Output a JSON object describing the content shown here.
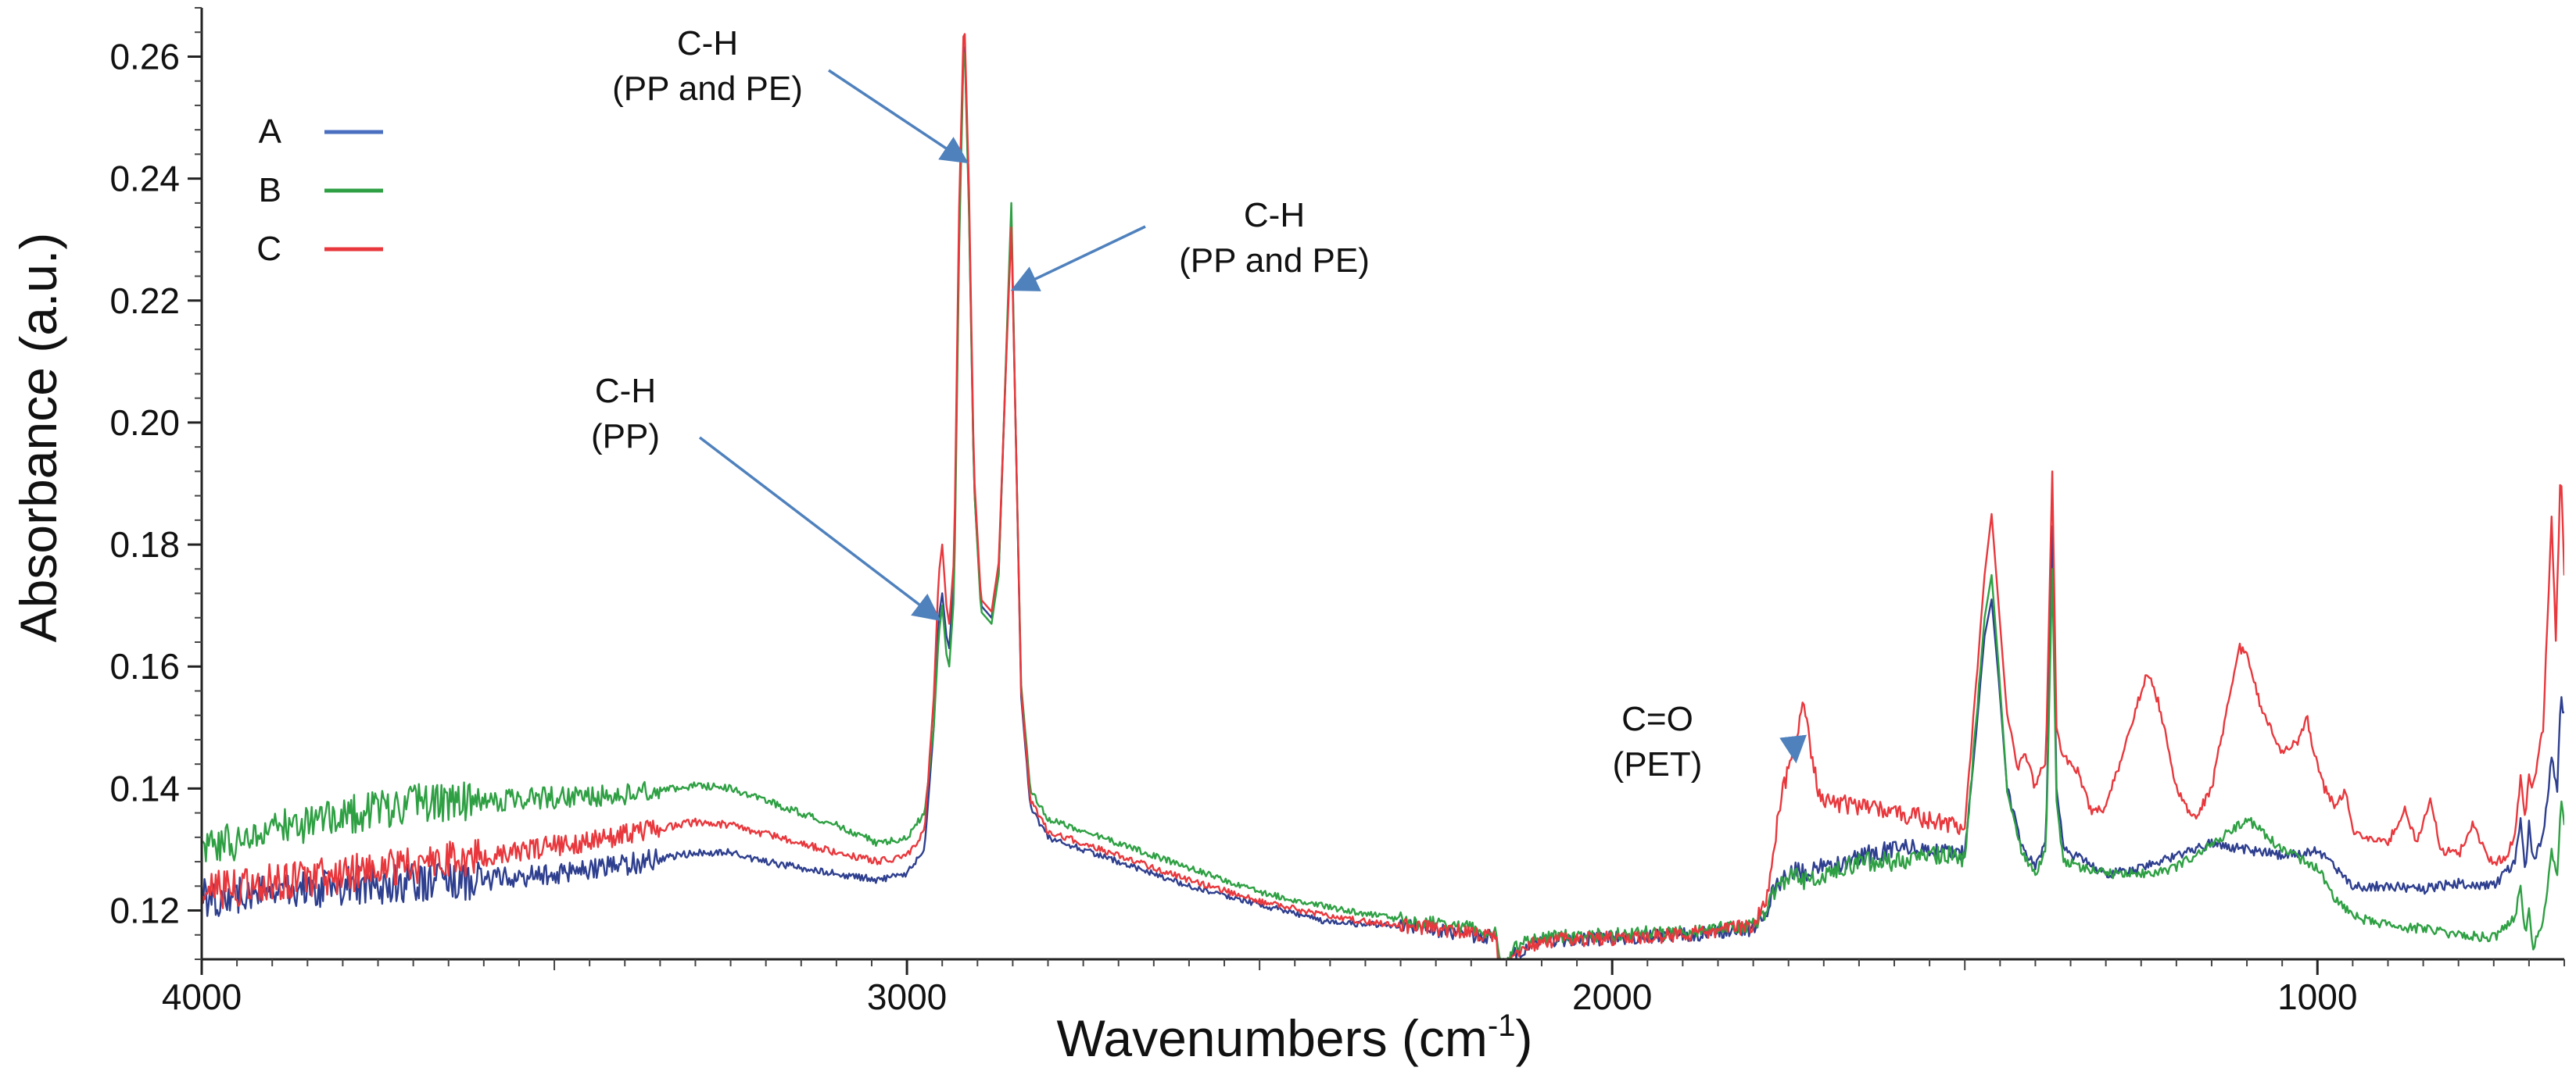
{
  "chart_data": {
    "type": "line",
    "title": "",
    "xlabel": "Wavenumbers (cm",
    "xlabel_superscript": "-1",
    "xlabel_suffix": ")",
    "ylabel": "Absorbance  (a.u.)",
    "xlim": [
      4000,
      650
    ],
    "ylim": [
      0.112,
      0.268
    ],
    "x_reversed": true,
    "grid": false,
    "legend_position": "top-left",
    "x_ticks": [
      "4000",
      "3000",
      "2000",
      "1000"
    ],
    "x_tick_values": [
      4000,
      3000,
      2000,
      1000
    ],
    "y_ticks": [
      "0.12",
      "0.14",
      "0.16",
      "0.18",
      "0.20",
      "0.22",
      "0.24",
      "0.26"
    ],
    "y_tick_values": [
      0.12,
      0.14,
      0.16,
      0.18,
      0.2,
      0.22,
      0.24,
      0.26
    ],
    "series": [
      {
        "name": "A",
        "color": "#2e3f8f",
        "legend_color": "#4a6fc0",
        "points": [
          [
            4000,
            0.122
          ],
          [
            3900,
            0.123
          ],
          [
            3800,
            0.124
          ],
          [
            3700,
            0.1245
          ],
          [
            3600,
            0.125
          ],
          [
            3500,
            0.126
          ],
          [
            3400,
            0.1275
          ],
          [
            3300,
            0.1295
          ],
          [
            3250,
            0.1295
          ],
          [
            3200,
            0.128
          ],
          [
            3100,
            0.126
          ],
          [
            3040,
            0.125
          ],
          [
            3000,
            0.126
          ],
          [
            2975,
            0.13
          ],
          [
            2962,
            0.15
          ],
          [
            2955,
            0.168
          ],
          [
            2950,
            0.172
          ],
          [
            2944,
            0.165
          ],
          [
            2940,
            0.163
          ],
          [
            2933,
            0.175
          ],
          [
            2926,
            0.23
          ],
          [
            2919,
            0.266
          ],
          [
            2912,
            0.235
          ],
          [
            2905,
            0.19
          ],
          [
            2895,
            0.17
          ],
          [
            2880,
            0.168
          ],
          [
            2870,
            0.175
          ],
          [
            2858,
            0.215
          ],
          [
            2852,
            0.234
          ],
          [
            2846,
            0.2
          ],
          [
            2838,
            0.155
          ],
          [
            2825,
            0.137
          ],
          [
            2800,
            0.132
          ],
          [
            2700,
            0.128
          ],
          [
            2600,
            0.124
          ],
          [
            2500,
            0.121
          ],
          [
            2400,
            0.118
          ],
          [
            2300,
            0.1175
          ],
          [
            2200,
            0.116
          ],
          [
            2165,
            0.1155
          ],
          [
            2160,
            0.111
          ],
          [
            2150,
            0.1095
          ],
          [
            2140,
            0.113
          ],
          [
            2100,
            0.115
          ],
          [
            2000,
            0.1155
          ],
          [
            1900,
            0.116
          ],
          [
            1800,
            0.117
          ],
          [
            1780,
            0.12
          ],
          [
            1770,
            0.124
          ],
          [
            1740,
            0.127
          ],
          [
            1730,
            0.126
          ],
          [
            1700,
            0.127
          ],
          [
            1650,
            0.129
          ],
          [
            1600,
            0.13
          ],
          [
            1550,
            0.13
          ],
          [
            1520,
            0.13
          ],
          [
            1500,
            0.129
          ],
          [
            1472,
            0.165
          ],
          [
            1462,
            0.171
          ],
          [
            1452,
            0.158
          ],
          [
            1440,
            0.14
          ],
          [
            1420,
            0.131
          ],
          [
            1400,
            0.127
          ],
          [
            1385,
            0.131
          ],
          [
            1376,
            0.183
          ],
          [
            1370,
            0.14
          ],
          [
            1360,
            0.13
          ],
          [
            1300,
            0.126
          ],
          [
            1250,
            0.127
          ],
          [
            1200,
            0.129
          ],
          [
            1150,
            0.131
          ],
          [
            1100,
            0.13
          ],
          [
            1050,
            0.129
          ],
          [
            1000,
            0.13
          ],
          [
            975,
            0.127
          ],
          [
            950,
            0.124
          ],
          [
            900,
            0.124
          ],
          [
            850,
            0.1235
          ],
          [
            800,
            0.1245
          ],
          [
            750,
            0.124
          ],
          [
            720,
            0.128
          ],
          [
            712,
            0.135
          ],
          [
            705,
            0.126
          ],
          [
            700,
            0.134
          ],
          [
            695,
            0.128
          ],
          [
            680,
            0.132
          ],
          [
            668,
            0.145
          ],
          [
            660,
            0.14
          ],
          [
            655,
            0.155
          ],
          [
            650,
            0.152
          ]
        ]
      },
      {
        "name": "B",
        "color": "#2ea043",
        "legend_color": "#2ea043",
        "points": [
          [
            4000,
            0.13
          ],
          [
            3900,
            0.133
          ],
          [
            3800,
            0.1355
          ],
          [
            3700,
            0.1375
          ],
          [
            3600,
            0.138
          ],
          [
            3500,
            0.1385
          ],
          [
            3400,
            0.139
          ],
          [
            3300,
            0.1405
          ],
          [
            3250,
            0.14
          ],
          [
            3200,
            0.138
          ],
          [
            3100,
            0.134
          ],
          [
            3040,
            0.131
          ],
          [
            3000,
            0.132
          ],
          [
            2975,
            0.136
          ],
          [
            2962,
            0.15
          ],
          [
            2955,
            0.165
          ],
          [
            2950,
            0.17
          ],
          [
            2944,
            0.162
          ],
          [
            2940,
            0.16
          ],
          [
            2933,
            0.172
          ],
          [
            2926,
            0.228
          ],
          [
            2919,
            0.265
          ],
          [
            2912,
            0.234
          ],
          [
            2905,
            0.19
          ],
          [
            2895,
            0.169
          ],
          [
            2880,
            0.167
          ],
          [
            2870,
            0.175
          ],
          [
            2858,
            0.216
          ],
          [
            2852,
            0.236
          ],
          [
            2846,
            0.2
          ],
          [
            2838,
            0.157
          ],
          [
            2825,
            0.14
          ],
          [
            2800,
            0.135
          ],
          [
            2700,
            0.131
          ],
          [
            2600,
            0.127
          ],
          [
            2500,
            0.123
          ],
          [
            2400,
            0.1205
          ],
          [
            2300,
            0.1185
          ],
          [
            2200,
            0.117
          ],
          [
            2165,
            0.116
          ],
          [
            2160,
            0.112
          ],
          [
            2150,
            0.1105
          ],
          [
            2140,
            0.114
          ],
          [
            2100,
            0.1155
          ],
          [
            2000,
            0.116
          ],
          [
            1900,
            0.1165
          ],
          [
            1800,
            0.1175
          ],
          [
            1780,
            0.12
          ],
          [
            1770,
            0.123
          ],
          [
            1740,
            0.126
          ],
          [
            1730,
            0.125
          ],
          [
            1700,
            0.126
          ],
          [
            1650,
            0.128
          ],
          [
            1600,
            0.128
          ],
          [
            1550,
            0.129
          ],
          [
            1520,
            0.129
          ],
          [
            1500,
            0.128
          ],
          [
            1472,
            0.168
          ],
          [
            1462,
            0.175
          ],
          [
            1452,
            0.16
          ],
          [
            1440,
            0.14
          ],
          [
            1420,
            0.13
          ],
          [
            1400,
            0.126
          ],
          [
            1385,
            0.13
          ],
          [
            1376,
            0.176
          ],
          [
            1370,
            0.138
          ],
          [
            1360,
            0.128
          ],
          [
            1300,
            0.126
          ],
          [
            1250,
            0.126
          ],
          [
            1200,
            0.127
          ],
          [
            1150,
            0.131
          ],
          [
            1100,
            0.135
          ],
          [
            1050,
            0.13
          ],
          [
            1000,
            0.127
          ],
          [
            975,
            0.122
          ],
          [
            950,
            0.119
          ],
          [
            900,
            0.1175
          ],
          [
            850,
            0.117
          ],
          [
            800,
            0.116
          ],
          [
            750,
            0.1155
          ],
          [
            720,
            0.119
          ],
          [
            712,
            0.124
          ],
          [
            705,
            0.115
          ],
          [
            700,
            0.121
          ],
          [
            695,
            0.114
          ],
          [
            680,
            0.118
          ],
          [
            668,
            0.13
          ],
          [
            660,
            0.125
          ],
          [
            655,
            0.138
          ],
          [
            650,
            0.134
          ]
        ]
      },
      {
        "name": "C",
        "color": "#e8383d",
        "legend_color": "#e8383d",
        "points": [
          [
            4000,
            0.123
          ],
          [
            3900,
            0.1245
          ],
          [
            3800,
            0.126
          ],
          [
            3700,
            0.1275
          ],
          [
            3600,
            0.129
          ],
          [
            3500,
            0.1305
          ],
          [
            3400,
            0.1325
          ],
          [
            3300,
            0.1345
          ],
          [
            3250,
            0.134
          ],
          [
            3200,
            0.1325
          ],
          [
            3100,
            0.1295
          ],
          [
            3040,
            0.128
          ],
          [
            3000,
            0.129
          ],
          [
            2975,
            0.133
          ],
          [
            2962,
            0.155
          ],
          [
            2955,
            0.175
          ],
          [
            2950,
            0.18
          ],
          [
            2944,
            0.17
          ],
          [
            2940,
            0.167
          ],
          [
            2933,
            0.178
          ],
          [
            2926,
            0.235
          ],
          [
            2919,
            0.268
          ],
          [
            2912,
            0.238
          ],
          [
            2905,
            0.192
          ],
          [
            2895,
            0.171
          ],
          [
            2880,
            0.169
          ],
          [
            2870,
            0.177
          ],
          [
            2858,
            0.214
          ],
          [
            2852,
            0.232
          ],
          [
            2846,
            0.2
          ],
          [
            2838,
            0.156
          ],
          [
            2825,
            0.138
          ],
          [
            2800,
            0.133
          ],
          [
            2700,
            0.129
          ],
          [
            2600,
            0.125
          ],
          [
            2500,
            0.1215
          ],
          [
            2400,
            0.119
          ],
          [
            2300,
            0.1175
          ],
          [
            2200,
            0.1165
          ],
          [
            2165,
            0.1155
          ],
          [
            2160,
            0.111
          ],
          [
            2150,
            0.1095
          ],
          [
            2140,
            0.113
          ],
          [
            2100,
            0.115
          ],
          [
            2000,
            0.1155
          ],
          [
            1900,
            0.116
          ],
          [
            1800,
            0.1175
          ],
          [
            1780,
            0.122
          ],
          [
            1770,
            0.131
          ],
          [
            1758,
            0.14
          ],
          [
            1740,
            0.147
          ],
          [
            1728,
            0.154
          ],
          [
            1718,
            0.146
          ],
          [
            1705,
            0.138
          ],
          [
            1650,
            0.137
          ],
          [
            1600,
            0.136
          ],
          [
            1550,
            0.135
          ],
          [
            1520,
            0.134
          ],
          [
            1500,
            0.134
          ],
          [
            1472,
            0.175
          ],
          [
            1462,
            0.185
          ],
          [
            1452,
            0.17
          ],
          [
            1440,
            0.152
          ],
          [
            1425,
            0.143
          ],
          [
            1415,
            0.146
          ],
          [
            1400,
            0.14
          ],
          [
            1385,
            0.145
          ],
          [
            1376,
            0.192
          ],
          [
            1370,
            0.15
          ],
          [
            1360,
            0.145
          ],
          [
            1340,
            0.143
          ],
          [
            1320,
            0.136
          ],
          [
            1300,
            0.137
          ],
          [
            1275,
            0.146
          ],
          [
            1250,
            0.156
          ],
          [
            1240,
            0.159
          ],
          [
            1225,
            0.154
          ],
          [
            1200,
            0.14
          ],
          [
            1175,
            0.135
          ],
          [
            1150,
            0.14
          ],
          [
            1125,
            0.155
          ],
          [
            1110,
            0.163
          ],
          [
            1100,
            0.162
          ],
          [
            1080,
            0.153
          ],
          [
            1050,
            0.146
          ],
          [
            1025,
            0.148
          ],
          [
            1015,
            0.152
          ],
          [
            1005,
            0.146
          ],
          [
            990,
            0.14
          ],
          [
            975,
            0.137
          ],
          [
            960,
            0.14
          ],
          [
            950,
            0.133
          ],
          [
            900,
            0.131
          ],
          [
            875,
            0.137
          ],
          [
            860,
            0.131
          ],
          [
            840,
            0.138
          ],
          [
            825,
            0.13
          ],
          [
            800,
            0.129
          ],
          [
            780,
            0.134
          ],
          [
            760,
            0.129
          ],
          [
            750,
            0.128
          ],
          [
            730,
            0.129
          ],
          [
            720,
            0.133
          ],
          [
            712,
            0.142
          ],
          [
            705,
            0.135
          ],
          [
            700,
            0.143
          ],
          [
            695,
            0.14
          ],
          [
            680,
            0.15
          ],
          [
            668,
            0.184
          ],
          [
            662,
            0.165
          ],
          [
            655,
            0.193
          ],
          [
            650,
            0.175
          ]
        ]
      }
    ],
    "annotations": [
      {
        "id": "ch-peak-2919",
        "lines": [
          "C-H",
          "(PP and PE)"
        ],
        "arrow_to": [
          2919,
          0.243
        ]
      },
      {
        "id": "ch-peak-2850",
        "lines": [
          "C-H",
          "(PP and PE)"
        ],
        "arrow_to": [
          2846,
          0.222
        ]
      },
      {
        "id": "ch-peak-2950",
        "lines": [
          "C-H",
          "(PP)"
        ],
        "arrow_to": [
          2958,
          0.168
        ]
      },
      {
        "id": "co-peak-1720",
        "lines": [
          "C=O",
          "(PET)"
        ],
        "arrow_to": [
          1740,
          0.145
        ]
      }
    ],
    "arrow_color": "#4f81bd"
  }
}
